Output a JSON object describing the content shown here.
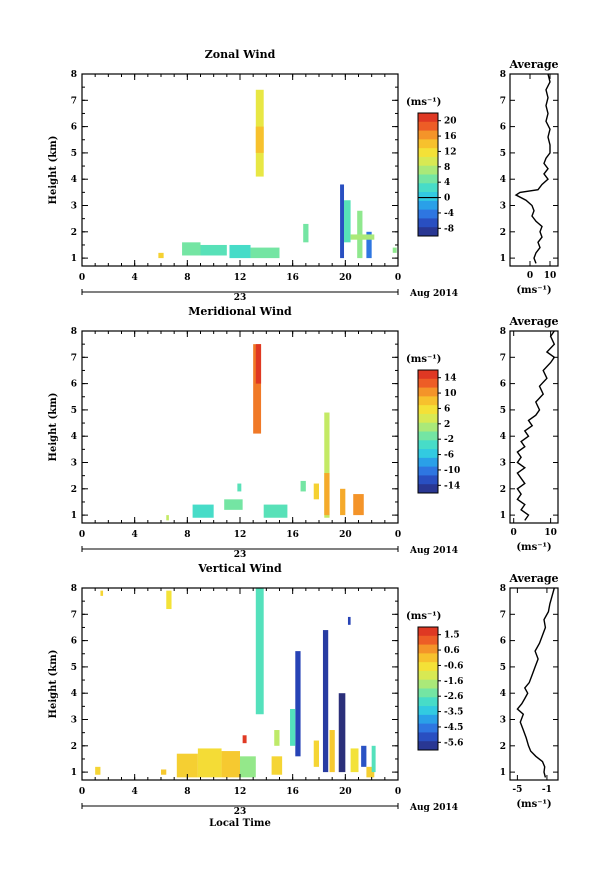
{
  "chart_data": [
    {
      "type": "heatmap",
      "title": "Zonal Wind",
      "ylabel": "Height (km)",
      "xlabel": "",
      "colorbar_label": "(ms⁻¹)",
      "colorbar_ticks": [
        "20",
        "16",
        "12",
        "8",
        "4",
        "0",
        "-4",
        "-8"
      ],
      "xticks": [
        "0",
        "4",
        "8",
        "12",
        "16",
        "20",
        "0"
      ],
      "yticks": [
        "1",
        "2",
        "3",
        "4",
        "5",
        "6",
        "7",
        "8"
      ],
      "date_day": "23",
      "date_label": "Aug 2014",
      "xlim": [
        0,
        24
      ],
      "ylim": [
        0.7,
        8
      ],
      "profile": {
        "title": "Average",
        "xlabel": "(ms⁻¹)",
        "xticks": [
          "0",
          "10"
        ],
        "xlim": [
          -10,
          14
        ],
        "points": [
          [
            3,
            0.8
          ],
          [
            2,
            1.0
          ],
          [
            3,
            1.2
          ],
          [
            5,
            1.4
          ],
          [
            4,
            1.6
          ],
          [
            6,
            1.8
          ],
          [
            5,
            2.0
          ],
          [
            6,
            2.2
          ],
          [
            3,
            2.4
          ],
          [
            1,
            2.6
          ],
          [
            2,
            2.8
          ],
          [
            1,
            3.0
          ],
          [
            -2,
            3.2
          ],
          [
            -7,
            3.4
          ],
          [
            -5,
            3.5
          ],
          [
            4,
            3.6
          ],
          [
            6,
            3.8
          ],
          [
            9,
            4.0
          ],
          [
            7,
            4.2
          ],
          [
            9,
            4.4
          ],
          [
            7,
            4.6
          ],
          [
            8,
            4.8
          ],
          [
            10,
            5.0
          ],
          [
            10,
            5.3
          ],
          [
            9,
            5.6
          ],
          [
            10,
            5.9
          ],
          [
            8,
            6.2
          ],
          [
            9,
            6.5
          ],
          [
            8,
            6.8
          ],
          [
            9,
            7.1
          ],
          [
            8,
            7.4
          ],
          [
            10,
            7.7
          ],
          [
            9,
            8.0
          ]
        ]
      },
      "patches": [
        {
          "x": [
            13.2,
            13.8
          ],
          "y": [
            4.1,
            7.4
          ],
          "value": 10
        },
        {
          "x": [
            13.2,
            13.8
          ],
          "y": [
            5.0,
            6.0
          ],
          "value": 13
        },
        {
          "x": [
            5.8,
            6.2
          ],
          "y": [
            1.0,
            1.2
          ],
          "value": 12
        },
        {
          "x": [
            7.6,
            9.0
          ],
          "y": [
            1.1,
            1.6
          ],
          "value": 5
        },
        {
          "x": [
            9.0,
            11.0
          ],
          "y": [
            1.1,
            1.5
          ],
          "value": 4
        },
        {
          "x": [
            11.2,
            12.8
          ],
          "y": [
            1.0,
            1.5
          ],
          "value": 3
        },
        {
          "x": [
            12.8,
            15.0
          ],
          "y": [
            1.0,
            1.4
          ],
          "value": 5
        },
        {
          "x": [
            16.8,
            17.2
          ],
          "y": [
            1.6,
            2.3
          ],
          "value": 5
        },
        {
          "x": [
            19.6,
            19.9
          ],
          "y": [
            1.0,
            3.8
          ],
          "value": -5
        },
        {
          "x": [
            19.9,
            20.4
          ],
          "y": [
            1.6,
            3.2
          ],
          "value": 4
        },
        {
          "x": [
            20.9,
            21.3
          ],
          "y": [
            1.0,
            2.8
          ],
          "value": 6
        },
        {
          "x": [
            21.6,
            22.0
          ],
          "y": [
            1.0,
            2.0
          ],
          "value": -3
        },
        {
          "x": [
            20.4,
            22.2
          ],
          "y": [
            1.7,
            1.9
          ],
          "value": 7
        },
        {
          "x": [
            23.6,
            23.9
          ],
          "y": [
            1.2,
            1.4
          ],
          "value": 6
        }
      ]
    },
    {
      "type": "heatmap",
      "title": "Meridional Wind",
      "ylabel": "Height (km)",
      "xlabel": "",
      "colorbar_label": "(ms⁻¹)",
      "colorbar_ticks": [
        "14",
        "10",
        "6",
        "2",
        "-2",
        "-6",
        "-10",
        "-14"
      ],
      "xticks": [
        "0",
        "4",
        "8",
        "12",
        "16",
        "20",
        "0"
      ],
      "yticks": [
        "1",
        "2",
        "3",
        "4",
        "5",
        "6",
        "7",
        "8"
      ],
      "date_day": "23",
      "date_label": "Aug 2014",
      "xlim": [
        0,
        24
      ],
      "ylim": [
        0.7,
        8
      ],
      "profile": {
        "title": "Average",
        "xlabel": "(ms⁻¹)",
        "xticks": [
          "0",
          "10"
        ],
        "xlim": [
          -1,
          12
        ],
        "points": [
          [
            3,
            0.8
          ],
          [
            4,
            1.0
          ],
          [
            2,
            1.2
          ],
          [
            3,
            1.4
          ],
          [
            1,
            1.6
          ],
          [
            2,
            1.8
          ],
          [
            1,
            2.0
          ],
          [
            3,
            2.2
          ],
          [
            2,
            2.4
          ],
          [
            1,
            2.6
          ],
          [
            3,
            2.8
          ],
          [
            1,
            3.0
          ],
          [
            2,
            3.2
          ],
          [
            1,
            3.4
          ],
          [
            3,
            3.6
          ],
          [
            2,
            3.8
          ],
          [
            4,
            4.0
          ],
          [
            3,
            4.2
          ],
          [
            5,
            4.4
          ],
          [
            4,
            4.6
          ],
          [
            6,
            4.8
          ],
          [
            7,
            5.0
          ],
          [
            6,
            5.3
          ],
          [
            8,
            5.6
          ],
          [
            7,
            5.9
          ],
          [
            9,
            6.2
          ],
          [
            8,
            6.5
          ],
          [
            10,
            6.8
          ],
          [
            11,
            7.0
          ],
          [
            9,
            7.2
          ],
          [
            11,
            7.5
          ],
          [
            10,
            7.8
          ],
          [
            11,
            8.0
          ]
        ]
      },
      "patches": [
        {
          "x": [
            13.0,
            13.6
          ],
          "y": [
            4.1,
            7.5
          ],
          "value": 10
        },
        {
          "x": [
            13.2,
            13.6
          ],
          "y": [
            6.0,
            7.5
          ],
          "value": 13
        },
        {
          "x": [
            6.4,
            6.6
          ],
          "y": [
            0.8,
            1.0
          ],
          "value": 2
        },
        {
          "x": [
            8.4,
            10.0
          ],
          "y": [
            0.9,
            1.4
          ],
          "value": -3
        },
        {
          "x": [
            10.8,
            12.2
          ],
          "y": [
            1.2,
            1.6
          ],
          "value": -1
        },
        {
          "x": [
            11.8,
            12.1
          ],
          "y": [
            1.9,
            2.2
          ],
          "value": -2
        },
        {
          "x": [
            13.8,
            15.6
          ],
          "y": [
            0.9,
            1.4
          ],
          "value": -2
        },
        {
          "x": [
            16.6,
            17.0
          ],
          "y": [
            1.9,
            2.3
          ],
          "value": -1
        },
        {
          "x": [
            18.4,
            18.8
          ],
          "y": [
            0.9,
            4.9
          ],
          "value": 2
        },
        {
          "x": [
            18.4,
            18.8
          ],
          "y": [
            1.0,
            2.6
          ],
          "value": 8
        },
        {
          "x": [
            19.6,
            20.0
          ],
          "y": [
            1.0,
            2.0
          ],
          "value": 8
        },
        {
          "x": [
            20.6,
            21.4
          ],
          "y": [
            1.0,
            1.8
          ],
          "value": 9
        },
        {
          "x": [
            17.6,
            18.0
          ],
          "y": [
            1.6,
            2.2
          ],
          "value": 6
        }
      ]
    },
    {
      "type": "heatmap",
      "title": "Vertical Wind",
      "ylabel": "Height (km)",
      "xlabel": "Local Time",
      "colorbar_label": "(ms⁻¹)",
      "colorbar_ticks": [
        "1.5",
        "0.6",
        "-0.6",
        "-1.6",
        "-2.6",
        "-3.5",
        "-4.5",
        "-5.6"
      ],
      "xticks": [
        "0",
        "4",
        "8",
        "12",
        "16",
        "20",
        "0"
      ],
      "yticks": [
        "1",
        "2",
        "3",
        "4",
        "5",
        "6",
        "7",
        "8"
      ],
      "date_day": "23",
      "date_label": "Aug 2014",
      "xlim": [
        0,
        24
      ],
      "ylim": [
        0.7,
        8
      ],
      "profile": {
        "title": "Average",
        "xlabel": "(ms⁻¹)",
        "xticks": [
          "-5",
          "-1"
        ],
        "xlim": [
          -6,
          0.5
        ],
        "points": [
          [
            -1.2,
            0.8
          ],
          [
            -1.4,
            1.0
          ],
          [
            -1.3,
            1.2
          ],
          [
            -1.6,
            1.4
          ],
          [
            -2.5,
            1.6
          ],
          [
            -3.2,
            1.8
          ],
          [
            -3.5,
            2.0
          ],
          [
            -3.8,
            2.3
          ],
          [
            -4.2,
            2.6
          ],
          [
            -4.6,
            2.9
          ],
          [
            -4.2,
            3.2
          ],
          [
            -5.0,
            3.4
          ],
          [
            -4.4,
            3.6
          ],
          [
            -4.0,
            3.8
          ],
          [
            -3.6,
            4.0
          ],
          [
            -4.0,
            4.2
          ],
          [
            -3.4,
            4.4
          ],
          [
            -3.0,
            4.7
          ],
          [
            -2.6,
            5.0
          ],
          [
            -2.2,
            5.3
          ],
          [
            -2.6,
            5.6
          ],
          [
            -2.0,
            5.9
          ],
          [
            -1.6,
            6.2
          ],
          [
            -1.2,
            6.5
          ],
          [
            -1.4,
            6.8
          ],
          [
            -0.8,
            7.1
          ],
          [
            -0.6,
            7.4
          ],
          [
            -0.3,
            7.7
          ],
          [
            0.0,
            8.0
          ]
        ]
      },
      "patches": [
        {
          "x": [
            1.4,
            1.6
          ],
          "y": [
            7.7,
            7.9
          ],
          "value": -0.6
        },
        {
          "x": [
            6.4,
            6.8
          ],
          "y": [
            7.2,
            7.9
          ],
          "value": -0.8
        },
        {
          "x": [
            13.2,
            13.8
          ],
          "y": [
            3.2,
            8.0
          ],
          "value": -2.6
        },
        {
          "x": [
            12.2,
            12.5
          ],
          "y": [
            2.1,
            2.4
          ],
          "value": 1.2
        },
        {
          "x": [
            1.0,
            1.4
          ],
          "y": [
            0.9,
            1.2
          ],
          "value": -0.6
        },
        {
          "x": [
            6.0,
            6.4
          ],
          "y": [
            0.9,
            1.1
          ],
          "value": -0.4
        },
        {
          "x": [
            7.2,
            8.8
          ],
          "y": [
            0.8,
            1.7
          ],
          "value": -0.5
        },
        {
          "x": [
            8.8,
            10.6
          ],
          "y": [
            0.8,
            1.9
          ],
          "value": -0.7
        },
        {
          "x": [
            10.6,
            12.0
          ],
          "y": [
            0.8,
            1.8
          ],
          "value": -0.4
        },
        {
          "x": [
            12.0,
            13.2
          ],
          "y": [
            0.8,
            1.6
          ],
          "value": -2.0
        },
        {
          "x": [
            14.4,
            15.2
          ],
          "y": [
            0.9,
            1.6
          ],
          "value": -0.6
        },
        {
          "x": [
            14.6,
            15.0
          ],
          "y": [
            2.0,
            2.6
          ],
          "value": -1.6
        },
        {
          "x": [
            16.2,
            16.6
          ],
          "y": [
            1.6,
            5.6
          ],
          "value": -5.0
        },
        {
          "x": [
            15.8,
            16.2
          ],
          "y": [
            2.0,
            3.4
          ],
          "value": -2.6
        },
        {
          "x": [
            17.6,
            18.0
          ],
          "y": [
            1.2,
            2.2
          ],
          "value": -0.6
        },
        {
          "x": [
            18.3,
            18.7
          ],
          "y": [
            1.0,
            6.4
          ],
          "value": -5.2
        },
        {
          "x": [
            18.8,
            19.2
          ],
          "y": [
            1.0,
            2.6
          ],
          "value": -0.4
        },
        {
          "x": [
            19.5,
            20.0
          ],
          "y": [
            1.0,
            4.0
          ],
          "value": -5.6
        },
        {
          "x": [
            20.4,
            21.0
          ],
          "y": [
            1.0,
            1.9
          ],
          "value": -0.8
        },
        {
          "x": [
            21.2,
            21.6
          ],
          "y": [
            1.2,
            2.0
          ],
          "value": -4.8
        },
        {
          "x": [
            21.6,
            22.2
          ],
          "y": [
            0.8,
            1.2
          ],
          "value": -0.5
        },
        {
          "x": [
            22.0,
            22.3
          ],
          "y": [
            1.0,
            2.0
          ],
          "value": -2.6
        },
        {
          "x": [
            20.2,
            20.4
          ],
          "y": [
            6.6,
            6.9
          ],
          "value": -5.0
        }
      ]
    }
  ]
}
